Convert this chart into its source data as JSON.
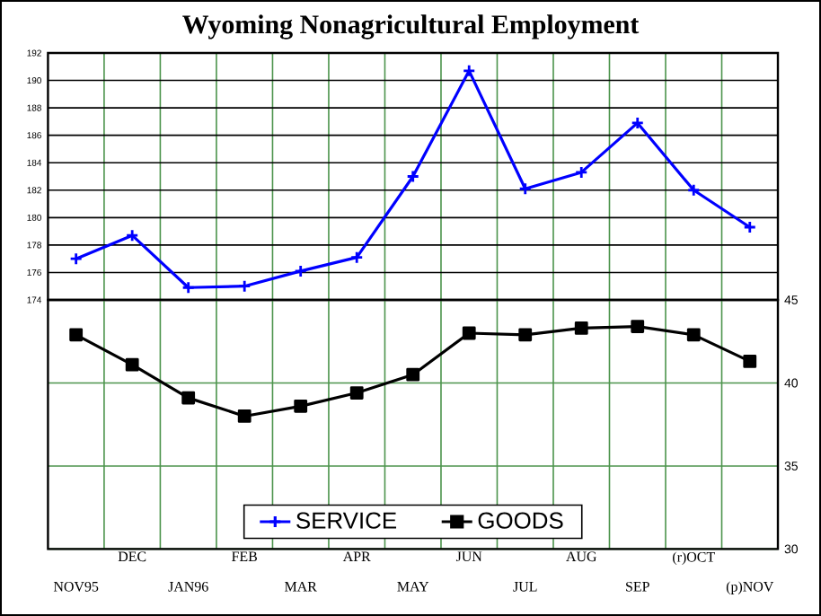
{
  "chart_data": [
    {
      "type": "line",
      "title": "Wyoming Nonagricultural Employment",
      "series": [
        {
          "name": "SERVICE",
          "color": "#0000ff",
          "marker": "cross",
          "values": [
            177,
            178.7,
            174.9,
            175,
            176.1,
            177.1,
            183,
            190.7,
            182.1,
            183.3,
            186.9,
            182,
            179.3
          ]
        }
      ],
      "ylim": [
        174,
        192
      ],
      "yticks": [
        174,
        176,
        178,
        180,
        182,
        184,
        186,
        188,
        190,
        192
      ],
      "grid": true,
      "tick_labels": "y"
    },
    {
      "type": "line",
      "categories": [
        "NOV95",
        "DEC",
        "JAN96",
        "FEB",
        "MAR",
        "APR",
        "MAY",
        "JUN",
        "JUL",
        "AUG",
        "SEP",
        "(r)OCT",
        "(p)NOV"
      ],
      "series": [
        {
          "name": "GOODS",
          "color": "#000000",
          "marker": "square",
          "values": [
            42.9,
            41.1,
            39.1,
            38.0,
            38.6,
            39.4,
            40.5,
            43.0,
            42.9,
            43.3,
            43.4,
            42.9,
            41.3
          ]
        }
      ],
      "ylim": [
        30,
        45
      ],
      "yticks": [
        30,
        35,
        40,
        45
      ],
      "grid": true,
      "legend": "bottom"
    }
  ]
}
